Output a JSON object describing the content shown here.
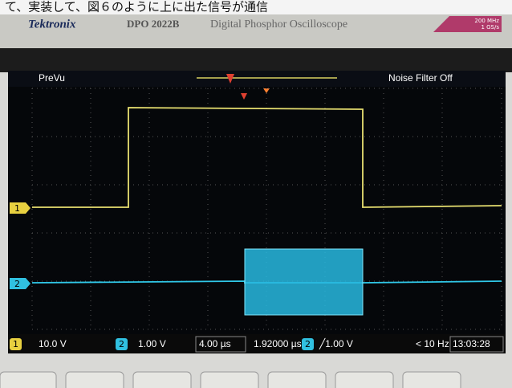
{
  "caption": "て、実装して、図６のように上に出た信号が通信",
  "bezel": {
    "brand": "Tektronix",
    "model": "DPO 2022B",
    "description": "Digital Phosphor Oscilloscope",
    "bandwidth": "200 MHz",
    "sample_rate": "1 GS/s"
  },
  "screen": {
    "mode": "PreVu",
    "noise_filter": "Noise Filter Off",
    "ch1_marker": "1",
    "ch2_marker": "2"
  },
  "status_bar": {
    "ch1_label": "1",
    "ch1_scale": "10.0 V",
    "ch2_label": "2",
    "ch2_scale": "1.00 V",
    "timebase": "4.00 µs",
    "position": "1.92000 µs",
    "trigger_source": "2",
    "trigger_level": "╱1.00 V",
    "trigger_freq": "< 10 Hz",
    "clock": "13:03:28"
  }
}
